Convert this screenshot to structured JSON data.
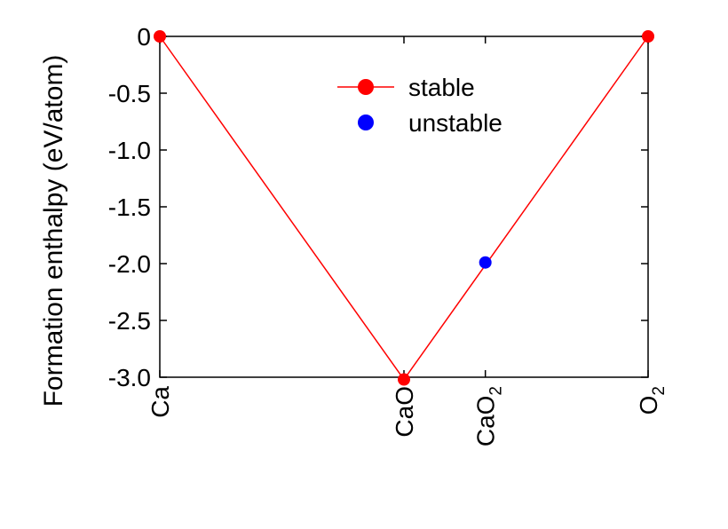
{
  "chart_data": {
    "type": "scatter",
    "title": "",
    "xlabel": "",
    "ylabel": "Formation enthalpy (eV/atom)",
    "ylim": [
      -3.0,
      0.0
    ],
    "xlim": [
      0.0,
      1.0
    ],
    "yticks": [
      {
        "value": 0.0,
        "label": "0"
      },
      {
        "value": -0.5,
        "label": "-0.5"
      },
      {
        "value": -1.0,
        "label": "-1.0"
      },
      {
        "value": -1.5,
        "label": "-1.5"
      },
      {
        "value": -2.0,
        "label": "-2.0"
      },
      {
        "value": -2.5,
        "label": "-2.5"
      },
      {
        "value": -3.0,
        "label": "-3.0"
      }
    ],
    "xticks": [
      {
        "value": 0.0,
        "label": "Ca",
        "sub": ""
      },
      {
        "value": 0.5,
        "label": "CaO",
        "sub": ""
      },
      {
        "value": 0.6667,
        "label": "CaO",
        "sub": "2"
      },
      {
        "value": 1.0,
        "label": "O",
        "sub": "2"
      }
    ],
    "grid": false,
    "legend_position": "top-center",
    "series": [
      {
        "name": "stable",
        "color": "#ff0000",
        "line": true,
        "points": [
          {
            "x": 0.0,
            "y": 0.0
          },
          {
            "x": 0.5,
            "y": -3.02
          },
          {
            "x": 1.0,
            "y": 0.0
          }
        ]
      },
      {
        "name": "unstable",
        "color": "#0000ff",
        "line": false,
        "points": [
          {
            "x": 0.6667,
            "y": -1.99
          }
        ]
      }
    ]
  }
}
